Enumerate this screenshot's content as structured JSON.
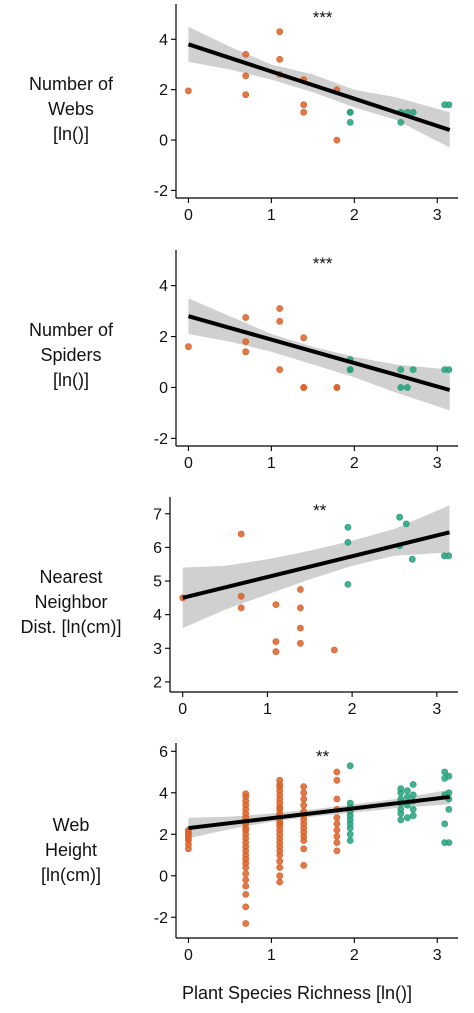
{
  "colors": {
    "orange": "#d9622a",
    "green": "#26a17d",
    "line": "#000000",
    "ribbon": "#c8c8c8"
  },
  "panel_labels": [
    [
      "Number of",
      "Webs",
      "[ln()]"
    ],
    [
      "Number of",
      "Spiders",
      "[ln()]"
    ],
    [
      "Nearest",
      "Neighbor",
      "Dist. [ln(cm)]"
    ],
    [
      "Web",
      "Height",
      "[ln(cm)]"
    ]
  ],
  "xlabel": "Plant Species Richness [ln()]",
  "chart_data": [
    {
      "type": "scatter",
      "ylabel": "Number of Webs [ln()]",
      "xlabel": "Plant Species Richness [ln()]",
      "xlim": [
        -0.15,
        3.25
      ],
      "ylim": [
        -2.3,
        5.4
      ],
      "xticks": [
        "0",
        "1",
        "2",
        "3"
      ],
      "yticks": [
        "-2",
        "0",
        "2",
        "4"
      ],
      "significance": "***",
      "fit": {
        "x": [
          0,
          3.15
        ],
        "y": [
          3.8,
          0.4
        ]
      },
      "ribbon": {
        "x": [
          0,
          0.5,
          1.0,
          1.5,
          2.0,
          2.5,
          3.15
        ],
        "lower": [
          3.1,
          2.8,
          2.4,
          1.9,
          1.3,
          0.8,
          -0.3
        ],
        "upper": [
          4.5,
          3.7,
          3.0,
          2.6,
          2.0,
          1.7,
          1.1
        ]
      },
      "series": [
        {
          "color": "orange",
          "x": [
            0,
            0.69,
            0.69,
            0.69,
            1.1,
            1.1,
            1.1,
            1.39,
            1.39,
            1.39,
            1.79,
            1.79
          ],
          "y": [
            1.95,
            3.4,
            2.55,
            1.8,
            4.3,
            3.2,
            2.6,
            2.4,
            1.4,
            1.1,
            2.0,
            0.0
          ]
        },
        {
          "color": "green",
          "x": [
            1.95,
            1.95,
            1.95,
            2.56,
            2.56,
            2.64,
            2.71,
            3.09,
            3.14
          ],
          "y": [
            1.1,
            1.1,
            0.7,
            1.1,
            0.7,
            1.1,
            1.1,
            1.4,
            1.4
          ]
        }
      ]
    },
    {
      "type": "scatter",
      "ylabel": "Number of Spiders [ln()]",
      "xlabel": "Plant Species Richness [ln()]",
      "xlim": [
        -0.15,
        3.25
      ],
      "ylim": [
        -2.3,
        5.4
      ],
      "xticks": [
        "0",
        "1",
        "2",
        "3"
      ],
      "yticks": [
        "-2",
        "0",
        "2",
        "4"
      ],
      "significance": "***",
      "fit": {
        "x": [
          0,
          3.15
        ],
        "y": [
          2.8,
          -0.1
        ]
      },
      "ribbon": {
        "x": [
          0,
          0.5,
          1.0,
          1.5,
          2.0,
          2.5,
          3.15
        ],
        "lower": [
          2.1,
          1.8,
          1.4,
          0.9,
          0.4,
          -0.2,
          -0.9
        ],
        "upper": [
          3.5,
          2.8,
          2.1,
          1.6,
          1.2,
          0.9,
          0.7
        ]
      },
      "series": [
        {
          "color": "orange",
          "x": [
            0,
            0.69,
            0.69,
            0.69,
            1.1,
            1.1,
            1.1,
            1.39,
            1.39,
            1.39,
            1.79,
            1.79
          ],
          "y": [
            1.6,
            2.75,
            1.8,
            1.4,
            3.1,
            2.6,
            0.7,
            1.95,
            0.0,
            0.0,
            0.0,
            0.0
          ]
        },
        {
          "color": "green",
          "x": [
            1.95,
            1.95,
            1.95,
            2.56,
            2.56,
            2.64,
            2.71,
            3.09,
            3.14
          ],
          "y": [
            1.1,
            0.7,
            0.7,
            0.7,
            0.0,
            0.0,
            0.7,
            0.7,
            0.7
          ]
        }
      ]
    },
    {
      "type": "scatter",
      "ylabel": "Nearest Neighbor Dist. [ln(cm)]",
      "xlabel": "Plant Species Richness [ln()]",
      "xlim": [
        -0.15,
        3.25
      ],
      "ylim": [
        1.7,
        7.5
      ],
      "xticks": [
        "0",
        "1",
        "2",
        "3"
      ],
      "yticks": [
        "2",
        "3",
        "4",
        "5",
        "6",
        "7"
      ],
      "significance": "**",
      "fit": {
        "x": [
          0,
          3.15
        ],
        "y": [
          4.5,
          6.45
        ]
      },
      "ribbon": {
        "x": [
          0,
          0.5,
          1.0,
          1.5,
          2.0,
          2.5,
          3.15
        ],
        "lower": [
          3.6,
          4.15,
          4.6,
          5.05,
          5.45,
          5.75,
          5.85
        ],
        "upper": [
          5.4,
          5.45,
          5.65,
          5.9,
          6.2,
          6.55,
          7.25
        ]
      },
      "series": [
        {
          "color": "orange",
          "x": [
            0,
            0.69,
            0.69,
            0.69,
            1.1,
            1.1,
            1.1,
            1.39,
            1.39,
            1.39,
            1.39,
            1.79
          ],
          "y": [
            4.5,
            6.4,
            4.55,
            4.2,
            4.3,
            3.2,
            2.9,
            4.75,
            4.2,
            3.6,
            3.15,
            2.95
          ]
        },
        {
          "color": "green",
          "x": [
            1.95,
            1.95,
            1.95,
            2.56,
            2.56,
            2.64,
            2.71,
            3.09,
            3.14
          ],
          "y": [
            6.6,
            6.15,
            4.9,
            6.9,
            6.05,
            6.7,
            5.65,
            5.75,
            5.75
          ]
        }
      ]
    },
    {
      "type": "scatter",
      "ylabel": "Web Height [ln(cm)]",
      "xlabel": "Plant Species Richness [ln()]",
      "xlim": [
        -0.15,
        3.25
      ],
      "ylim": [
        -3.0,
        6.4
      ],
      "xticks": [
        "0",
        "1",
        "2",
        "3"
      ],
      "yticks": [
        "-2",
        "0",
        "2",
        "4",
        "6"
      ],
      "significance": "**",
      "fit": {
        "x": [
          0,
          3.15
        ],
        "y": [
          2.3,
          3.8
        ]
      },
      "ribbon": {
        "x": [
          0,
          0.5,
          1.0,
          1.5,
          2.0,
          2.5,
          3.15
        ],
        "lower": [
          1.8,
          2.25,
          2.6,
          2.85,
          3.05,
          3.25,
          3.45
        ],
        "upper": [
          2.8,
          2.85,
          3.0,
          3.2,
          3.45,
          3.7,
          4.15
        ]
      },
      "series": [
        {
          "color": "orange",
          "x": [
            0,
            0,
            0,
            0,
            0,
            0,
            0,
            0,
            0.69,
            0.69,
            0.69,
            0.69,
            0.69,
            0.69,
            0.69,
            0.69,
            0.69,
            0.69,
            0.69,
            0.69,
            0.69,
            0.69,
            0.69,
            0.69,
            0.69,
            0.69,
            0.69,
            0.69,
            0.69,
            0.69,
            0.69,
            0.69,
            0.69,
            0.69,
            1.1,
            1.1,
            1.1,
            1.1,
            1.1,
            1.1,
            1.1,
            1.1,
            1.1,
            1.1,
            1.1,
            1.1,
            1.1,
            1.1,
            1.1,
            1.1,
            1.1,
            1.1,
            1.1,
            1.1,
            1.1,
            1.1,
            1.1,
            1.1,
            1.1,
            1.1,
            1.39,
            1.39,
            1.39,
            1.39,
            1.39,
            1.39,
            1.39,
            1.39,
            1.39,
            1.39,
            1.39,
            1.39,
            1.39,
            1.39,
            1.79,
            1.79,
            1.79,
            1.79,
            1.79,
            1.79,
            1.79,
            1.79,
            1.79,
            1.79
          ],
          "y": [
            2.2,
            2.1,
            2.0,
            1.9,
            1.8,
            1.7,
            1.5,
            1.3,
            3.95,
            3.8,
            3.6,
            3.4,
            3.2,
            3.0,
            2.8,
            2.6,
            2.5,
            2.3,
            2.2,
            2.0,
            1.8,
            1.6,
            1.4,
            1.2,
            1.0,
            0.8,
            0.6,
            0.4,
            0.1,
            -0.2,
            -0.5,
            -0.9,
            -1.5,
            -2.3,
            4.6,
            4.4,
            4.3,
            4.1,
            3.9,
            3.7,
            3.5,
            3.3,
            3.2,
            3.0,
            2.9,
            2.8,
            2.6,
            2.5,
            2.4,
            2.2,
            2.0,
            1.8,
            1.6,
            1.4,
            1.2,
            1.0,
            0.7,
            0.4,
            0.0,
            -0.3,
            4.3,
            4.0,
            3.7,
            3.4,
            3.1,
            2.9,
            2.7,
            2.5,
            2.3,
            2.1,
            1.9,
            1.7,
            1.3,
            0.5,
            5.0,
            4.6,
            3.7,
            3.2,
            2.8,
            2.5,
            2.2,
            1.9,
            1.6,
            1.2
          ]
        },
        {
          "color": "green",
          "x": [
            1.95,
            1.95,
            1.95,
            1.95,
            1.95,
            1.95,
            1.95,
            1.95,
            1.95,
            1.95,
            2.56,
            2.56,
            2.56,
            2.56,
            2.56,
            2.56,
            2.56,
            2.64,
            2.64,
            2.64,
            2.64,
            2.71,
            2.71,
            2.71,
            2.71,
            2.71,
            3.09,
            3.09,
            3.09,
            3.09,
            3.09,
            3.14,
            3.14,
            3.14,
            3.14,
            3.14
          ],
          "y": [
            5.3,
            3.5,
            3.3,
            3.1,
            2.9,
            2.7,
            2.5,
            2.3,
            2.0,
            1.7,
            4.2,
            4.0,
            3.7,
            3.5,
            3.2,
            3.0,
            2.7,
            4.1,
            3.8,
            3.4,
            2.8,
            4.4,
            3.9,
            3.6,
            3.2,
            2.9,
            5.0,
            4.7,
            3.9,
            2.5,
            1.6,
            4.8,
            4.0,
            3.7,
            3.2,
            1.6
          ]
        }
      ]
    }
  ]
}
